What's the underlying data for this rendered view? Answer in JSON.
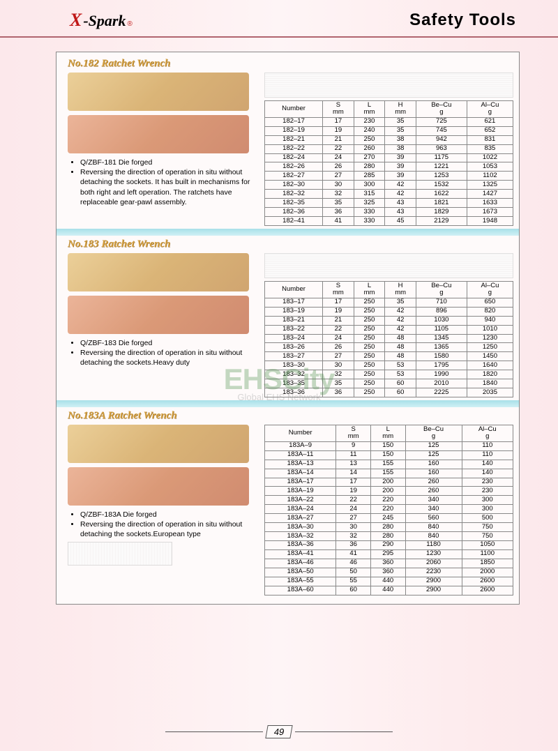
{
  "header": {
    "logo_x": "X",
    "logo_spark": "-Spark",
    "logo_reg": "®",
    "page_title": "Safety  Tools"
  },
  "watermark": {
    "main": "EHSCity",
    "sub": "Global EHS Network"
  },
  "page_number": "49",
  "sections": [
    {
      "title": "No.182 Ratchet Wrench",
      "bullets": [
        "Q/ZBF-181  Die forged",
        "Reversing the direction of operation in situ without detaching the sockets. It has built in mechanisms for both right and left operation. The ratchets have replaceable gear-pawl assembly."
      ],
      "columns": [
        "Number",
        "S\nmm",
        "L\nmm",
        "H\nmm",
        "Be–Cu\ng",
        "Al–Cu\ng"
      ],
      "rows": [
        [
          "182–17",
          "17",
          "230",
          "35",
          "725",
          "621"
        ],
        [
          "182–19",
          "19",
          "240",
          "35",
          "745",
          "652"
        ],
        [
          "182–21",
          "21",
          "250",
          "38",
          "942",
          "831"
        ],
        [
          "182–22",
          "22",
          "260",
          "38",
          "963",
          "835"
        ],
        [
          "182–24",
          "24",
          "270",
          "39",
          "1175",
          "1022"
        ],
        [
          "182–26",
          "26",
          "280",
          "39",
          "1221",
          "1053"
        ],
        [
          "182–27",
          "27",
          "285",
          "39",
          "1253",
          "1102"
        ],
        [
          "182–30",
          "30",
          "300",
          "42",
          "1532",
          "1325"
        ],
        [
          "182–32",
          "32",
          "315",
          "42",
          "1622",
          "1427"
        ],
        [
          "182–35",
          "35",
          "325",
          "43",
          "1821",
          "1633"
        ],
        [
          "182–36",
          "36",
          "330",
          "43",
          "1829",
          "1673"
        ],
        [
          "182–41",
          "41",
          "330",
          "45",
          "2129",
          "1948"
        ]
      ]
    },
    {
      "title": "No.183 Ratchet Wrench",
      "bullets": [
        "Q/ZBF-183  Die forged",
        "Reversing the direction of operation in situ without detaching the sockets.Heavy duty"
      ],
      "columns": [
        "Number",
        "S\nmm",
        "L\nmm",
        "H\nmm",
        "Be–Cu\ng",
        "Al–Cu\ng"
      ],
      "rows": [
        [
          "183–17",
          "17",
          "250",
          "35",
          "710",
          "650"
        ],
        [
          "183–19",
          "19",
          "250",
          "42",
          "896",
          "820"
        ],
        [
          "183–21",
          "21",
          "250",
          "42",
          "1030",
          "940"
        ],
        [
          "183–22",
          "22",
          "250",
          "42",
          "1105",
          "1010"
        ],
        [
          "183–24",
          "24",
          "250",
          "48",
          "1345",
          "1230"
        ],
        [
          "183–26",
          "26",
          "250",
          "48",
          "1365",
          "1250"
        ],
        [
          "183–27",
          "27",
          "250",
          "48",
          "1580",
          "1450"
        ],
        [
          "183–30",
          "30",
          "250",
          "53",
          "1795",
          "1640"
        ],
        [
          "183–32",
          "32",
          "250",
          "53",
          "1990",
          "1820"
        ],
        [
          "183–35",
          "35",
          "250",
          "60",
          "2010",
          "1840"
        ],
        [
          "183–36",
          "36",
          "250",
          "60",
          "2225",
          "2035"
        ]
      ]
    },
    {
      "title": "No.183A Ratchet Wrench",
      "bullets": [
        "Q/ZBF-183A  Die forged",
        "Reversing the direction of operation in situ without detaching the sockets.European type"
      ],
      "columns": [
        "Number",
        "S\nmm",
        "L\nmm",
        "Be–Cu\ng",
        "Al–Cu\ng"
      ],
      "rows": [
        [
          "183A–9",
          "9",
          "150",
          "125",
          "110"
        ],
        [
          "183A–11",
          "11",
          "150",
          "125",
          "110"
        ],
        [
          "183A–13",
          "13",
          "155",
          "160",
          "140"
        ],
        [
          "183A–14",
          "14",
          "155",
          "160",
          "140"
        ],
        [
          "183A–17",
          "17",
          "200",
          "260",
          "230"
        ],
        [
          "183A–19",
          "19",
          "200",
          "260",
          "230"
        ],
        [
          "183A–22",
          "22",
          "220",
          "340",
          "300"
        ],
        [
          "183A–24",
          "24",
          "220",
          "340",
          "300"
        ],
        [
          "183A–27",
          "27",
          "245",
          "560",
          "500"
        ],
        [
          "183A–30",
          "30",
          "280",
          "840",
          "750"
        ],
        [
          "183A–32",
          "32",
          "280",
          "840",
          "750"
        ],
        [
          "183A–36",
          "36",
          "290",
          "1180",
          "1050"
        ],
        [
          "183A–41",
          "41",
          "295",
          "1230",
          "1100"
        ],
        [
          "183A–46",
          "46",
          "360",
          "2060",
          "1850"
        ],
        [
          "183A–50",
          "50",
          "360",
          "2230",
          "2000"
        ],
        [
          "183A–55",
          "55",
          "440",
          "2900",
          "2600"
        ],
        [
          "183A–60",
          "60",
          "440",
          "2900",
          "2600"
        ]
      ]
    }
  ]
}
